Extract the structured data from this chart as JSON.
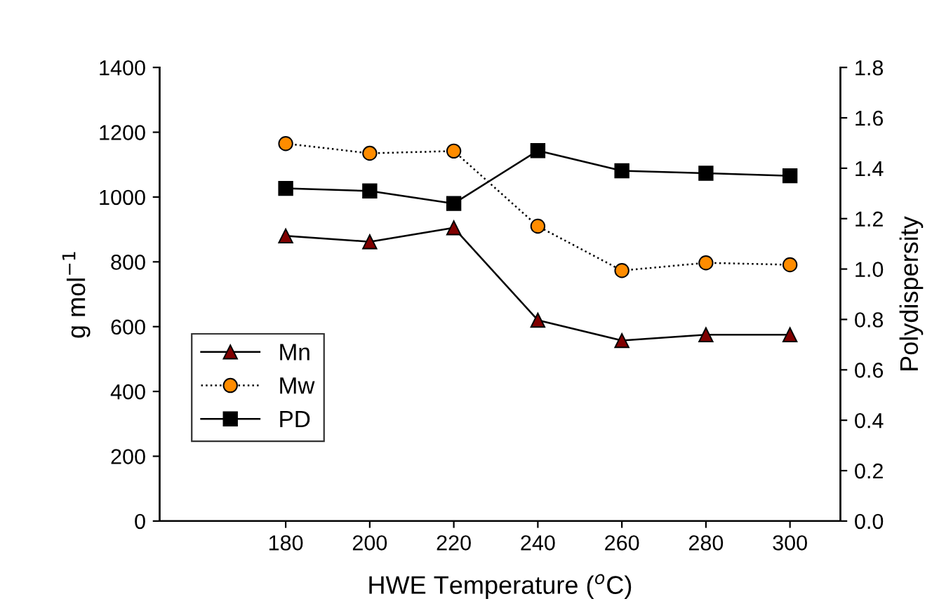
{
  "chart_data": {
    "type": "line",
    "xlabel": "HWE Temperature ($^{o}$C)",
    "ylabel": "g mol$^{−1}$",
    "y2label": "Polydispersity",
    "x": [
      180,
      200,
      220,
      240,
      260,
      280,
      300
    ],
    "series": [
      {
        "name": "Mn",
        "color": "#800000",
        "marker": "triangle",
        "line_style": "solid",
        "values": [
          880,
          862,
          905,
          620,
          557,
          575,
          575
        ]
      },
      {
        "name": "Mw",
        "color": "#ff8c00",
        "marker": "circle",
        "line_style": "dotted",
        "values": [
          1165,
          1135,
          1142,
          910,
          773,
          797,
          791
        ]
      },
      {
        "name": "PD",
        "color": "#000000",
        "marker": "square",
        "line_style": "solid",
        "axis": "y2",
        "values": [
          1.32,
          1.31,
          1.26,
          1.47,
          1.39,
          1.38,
          1.37
        ]
      }
    ],
    "xlim": [
      150,
      312
    ],
    "xticks": [
      180,
      200,
      220,
      240,
      260,
      280,
      300
    ],
    "ylim": [
      0,
      1400
    ],
    "yticks": [
      0,
      200,
      400,
      600,
      800,
      1000,
      1200,
      1400
    ],
    "y2lim": [
      0,
      1.8
    ],
    "y2ticks": [
      {
        "value": 0,
        "label": "0.0"
      },
      {
        "value": 0.2,
        "label": "0.2"
      },
      {
        "value": 0.4,
        "label": "0.4"
      },
      {
        "value": 0.6,
        "label": "0.6"
      },
      {
        "value": 0.8,
        "label": "0.8"
      },
      {
        "value": 1.0,
        "label": "1.0"
      },
      {
        "value": 1.2,
        "label": "1.2"
      },
      {
        "value": 1.4,
        "label": "1.4"
      },
      {
        "value": 1.6,
        "label": "1.6"
      },
      {
        "value": 1.8,
        "label": "1.8"
      }
    ],
    "grid": false,
    "legend": "bottom left"
  }
}
